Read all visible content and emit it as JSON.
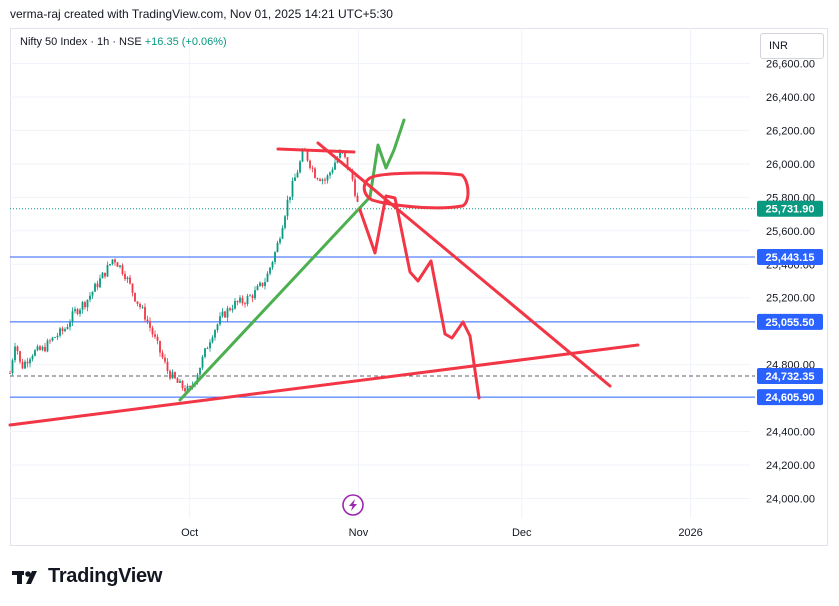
{
  "header": {
    "text": "verma-raj created with TradingView.com, Nov 01, 2025 14:21 UTC+5:30"
  },
  "symbol": {
    "name": "Nifty 50 Index · 1h · NSE",
    "change": "+16.35 (+0.06%)"
  },
  "currency": "INR",
  "brand": {
    "name": "TradingView",
    "logo_icon": "tradingview-logo-icon"
  },
  "event_icon": "lightning-event-icon",
  "colors": {
    "up": "#089981",
    "down": "#f23645",
    "green_line": "#4caf50",
    "red_line": "#f23645",
    "level": "#2962ff",
    "badge": "#2962ff",
    "price_badge": "#089981"
  },
  "chart_data": {
    "type": "candlestick",
    "ylim": [
      23880,
      26740
    ],
    "y_ticks": [
      {
        "value": 24000,
        "label": "24,000.00"
      },
      {
        "value": 24200,
        "label": "24,200.00"
      },
      {
        "value": 24400,
        "label": "24,400.00"
      },
      {
        "value": 24800,
        "label": "24,800.00"
      },
      {
        "value": 25200,
        "label": "25,200.00"
      },
      {
        "value": 25400,
        "label": "25,400.00"
      },
      {
        "value": 25600,
        "label": "25,600.00"
      },
      {
        "value": 25800,
        "label": "25,800.00"
      },
      {
        "value": 26000,
        "label": "26,000.00"
      },
      {
        "value": 26200,
        "label": "26,200.00"
      },
      {
        "value": 26400,
        "label": "26,400.00"
      },
      {
        "value": 26600,
        "label": "26,600.00"
      }
    ],
    "x_range": [
      "2025-08-29",
      "2026-01-11"
    ],
    "x_ticks": [
      {
        "date": "2025-10-01",
        "label": "Oct"
      },
      {
        "date": "2025-11-01",
        "label": "Nov"
      },
      {
        "date": "2025-12-01",
        "label": "Dec"
      },
      {
        "date": "2026-01-01",
        "label": "2026"
      }
    ],
    "price_path": [
      [
        "2025-08-29",
        24750
      ],
      [
        "2025-08-30",
        24950
      ],
      [
        "2025-08-31",
        24780
      ],
      [
        "2025-09-02",
        24870
      ],
      [
        "2025-09-04",
        24890
      ],
      [
        "2025-09-06",
        24960
      ],
      [
        "2025-09-08",
        25010
      ],
      [
        "2025-09-10",
        25120
      ],
      [
        "2025-09-12",
        25180
      ],
      [
        "2025-09-14",
        25280
      ],
      [
        "2025-09-16",
        25380
      ],
      [
        "2025-09-17",
        25440
      ],
      [
        "2025-09-19",
        25350
      ],
      [
        "2025-09-21",
        25200
      ],
      [
        "2025-09-23",
        25080
      ],
      [
        "2025-09-25",
        24920
      ],
      [
        "2025-09-27",
        24760
      ],
      [
        "2025-09-29",
        24680
      ],
      [
        "2025-10-01",
        24640
      ],
      [
        "2025-10-03",
        24800
      ],
      [
        "2025-10-05",
        24980
      ],
      [
        "2025-10-07",
        25090
      ],
      [
        "2025-10-09",
        25160
      ],
      [
        "2025-10-11",
        25180
      ],
      [
        "2025-10-13",
        25230
      ],
      [
        "2025-10-15",
        25310
      ],
      [
        "2025-10-17",
        25500
      ],
      [
        "2025-10-19",
        25780
      ],
      [
        "2025-10-21",
        25980
      ],
      [
        "2025-10-22",
        26080
      ],
      [
        "2025-10-24",
        25940
      ],
      [
        "2025-10-26",
        25900
      ],
      [
        "2025-10-28",
        26030
      ],
      [
        "2025-10-29",
        26070
      ],
      [
        "2025-10-31",
        25900
      ],
      [
        "2025-11-01",
        25732
      ]
    ],
    "current_price": 25731.9,
    "badges": [
      {
        "value": 25731.9,
        "label": "25,731.90",
        "kind": "price",
        "style": "dotted"
      },
      {
        "value": 25443.15,
        "label": "25,443.15",
        "kind": "level",
        "style": "solid"
      },
      {
        "value": 25055.5,
        "label": "25,055.50",
        "kind": "level",
        "style": "solid"
      },
      {
        "value": 24732.35,
        "label": "24,732.35",
        "kind": "level",
        "style": "dashed"
      },
      {
        "value": 24605.9,
        "label": "24,605.90",
        "kind": "level",
        "style": "solid"
      }
    ]
  }
}
